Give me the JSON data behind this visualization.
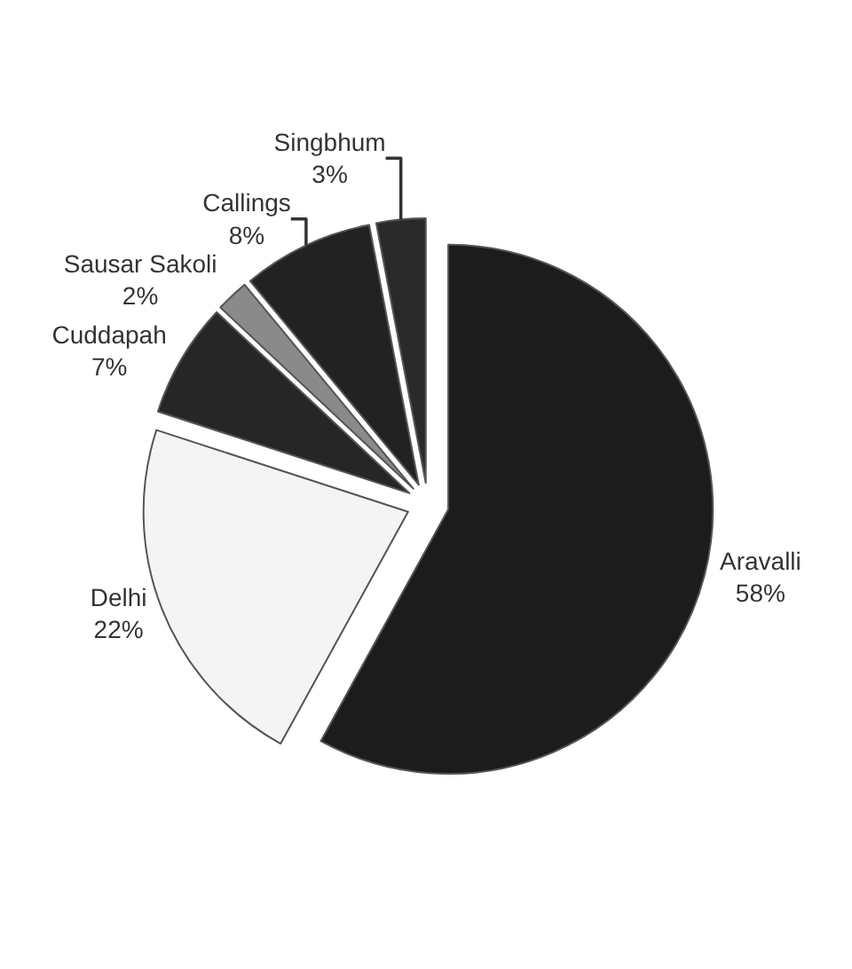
{
  "chart_data": {
    "type": "pie",
    "categories": [
      "Aravalli",
      "Delhi",
      "Cuddapah",
      "Sausar Sakoli",
      "Callings",
      "Singbhum"
    ],
    "values": [
      58,
      22,
      7,
      2,
      8,
      3
    ],
    "value_labels": [
      "58%",
      "22%",
      "7%",
      "2%",
      "8%",
      "3%"
    ],
    "colors": [
      "#1c1c1c",
      "#f4f4f4",
      "#262626",
      "#8a8a8a",
      "#222222",
      "#2a2a2a"
    ],
    "legend": false
  }
}
